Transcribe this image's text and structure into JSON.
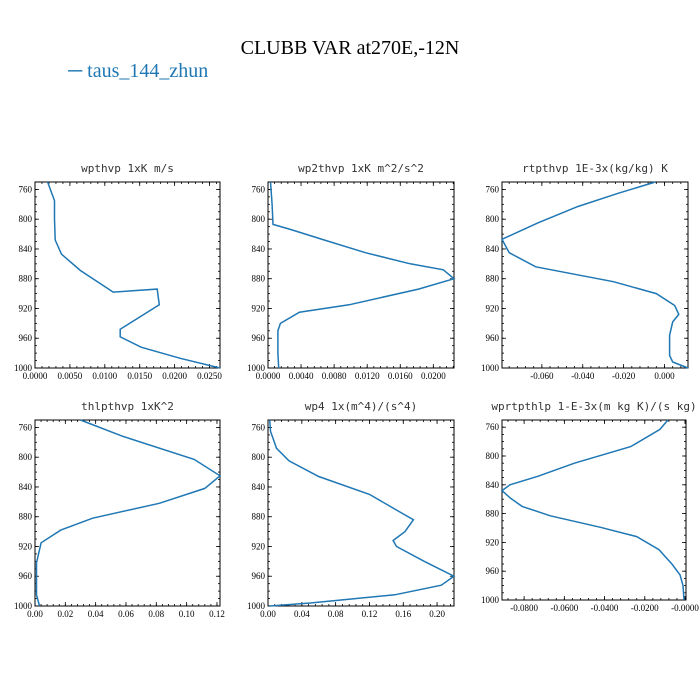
{
  "page": {
    "title": "CLUBB VAR at270E,-12N",
    "legend_label": "taus_144_zhun",
    "series_color": "#1f77b4"
  },
  "chart_data": [
    {
      "type": "line",
      "title": "wpthvp  1xK m/s",
      "xlim": [
        0,
        0.0265
      ],
      "ylim": [
        1000,
        750
      ],
      "y_reversed": true,
      "xticks": [
        0,
        0.005,
        0.01,
        0.015,
        0.02,
        0.025
      ],
      "xtick_labels": [
        "0.0000",
        "0.0050",
        "0.0100",
        "0.0150",
        "0.0200",
        "0.0250"
      ],
      "yticks": [
        760,
        800,
        840,
        880,
        920,
        960,
        1000
      ],
      "x": [
        0.0018,
        0.0028,
        0.0028,
        0.0029,
        0.0038,
        0.0065,
        0.0112,
        0.0175,
        0.0178,
        0.0122,
        0.0122,
        0.0152,
        0.0208,
        0.0265
      ],
      "y": [
        750,
        775,
        800,
        828,
        847,
        869,
        898,
        894,
        915,
        948,
        958,
        972,
        987,
        1000
      ]
    },
    {
      "type": "line",
      "title": "wp2thvp  1xK m^2/s^2",
      "xlim": [
        0,
        0.0225
      ],
      "ylim": [
        1000,
        750
      ],
      "y_reversed": true,
      "xticks": [
        0,
        0.004,
        0.008,
        0.012,
        0.016,
        0.02
      ],
      "xtick_labels": [
        "0.0000",
        "0.0040",
        "0.0080",
        "0.0120",
        "0.0160",
        "0.0200"
      ],
      "yticks": [
        760,
        800,
        840,
        880,
        920,
        960,
        1000
      ],
      "x": [
        0.0003,
        0.0005,
        0.0006,
        0.0028,
        0.0068,
        0.0118,
        0.0172,
        0.0212,
        0.0225,
        0.0182,
        0.0098,
        0.0038,
        0.0015,
        0.0012,
        0.0012,
        0.0013
      ],
      "y": [
        750,
        780,
        807,
        814,
        828,
        845,
        860,
        868,
        880,
        894,
        915,
        925,
        940,
        950,
        980,
        1000
      ]
    },
    {
      "type": "line",
      "title": "rtpthvp  1E-3x(kg/kg) K",
      "xlim": [
        -0.0795,
        0.0115
      ],
      "ylim": [
        1000,
        750
      ],
      "y_reversed": true,
      "xticks": [
        -0.06,
        -0.04,
        -0.02,
        0
      ],
      "xtick_labels": [
        "-0.060",
        "-0.040",
        "-0.020",
        "0.000"
      ],
      "yticks": [
        760,
        800,
        840,
        880,
        920,
        960,
        1000
      ],
      "x": [
        -0.0045,
        -0.0225,
        -0.0425,
        -0.062,
        -0.0795,
        -0.076,
        -0.063,
        -0.025,
        -0.004,
        0.005,
        0.007,
        0.004,
        0.0025,
        0.0025,
        0.004,
        0.0115
      ],
      "y": [
        750,
        765,
        783,
        805,
        827,
        845,
        864,
        884,
        900,
        916,
        928,
        938,
        956,
        983,
        992,
        1000
      ]
    },
    {
      "type": "line",
      "title": "thlpthvp  1xK^2",
      "xlim": [
        0,
        0.122
      ],
      "ylim": [
        1000,
        750
      ],
      "y_reversed": true,
      "xticks": [
        0,
        0.02,
        0.04,
        0.06,
        0.08,
        0.1,
        0.12
      ],
      "xtick_labels": [
        "0.00",
        "0.02",
        "0.04",
        "0.06",
        "0.08",
        "0.10",
        "0.12"
      ],
      "yticks": [
        760,
        800,
        840,
        880,
        920,
        960,
        1000
      ],
      "x": [
        0.03,
        0.058,
        0.105,
        0.122,
        0.112,
        0.082,
        0.038,
        0.017,
        0.004,
        0.001,
        0.001,
        0.003
      ],
      "y": [
        750,
        772,
        803,
        825,
        842,
        862,
        882,
        898,
        915,
        942,
        985,
        1000
      ]
    },
    {
      "type": "line",
      "title": "wp4  1x(m^4)/(s^4)",
      "xlim": [
        0,
        0.22
      ],
      "ylim": [
        1000,
        750
      ],
      "y_reversed": true,
      "xticks": [
        0,
        0.04,
        0.08,
        0.12,
        0.16,
        0.2
      ],
      "xtick_labels": [
        "0.00",
        "0.04",
        "0.08",
        "0.12",
        "0.16",
        "0.20"
      ],
      "yticks": [
        760,
        800,
        840,
        880,
        920,
        960,
        1000
      ],
      "x": [
        0.002,
        0.003,
        0.01,
        0.025,
        0.06,
        0.12,
        0.155,
        0.172,
        0.162,
        0.148,
        0.152,
        0.185,
        0.22,
        0.205,
        0.15,
        0.05,
        0.002
      ],
      "y": [
        750,
        765,
        788,
        805,
        826,
        850,
        873,
        884,
        900,
        912,
        920,
        940,
        960,
        972,
        985,
        996,
        1000
      ]
    },
    {
      "type": "line",
      "title": "wprtpthlp  1-E-3x(m kg K)/(s kg)",
      "xlim": [
        -0.091,
        0.0005
      ],
      "ylim": [
        1000,
        750
      ],
      "y_reversed": true,
      "xticks": [
        -0.08,
        -0.06,
        -0.04,
        -0.02,
        0
      ],
      "xtick_labels": [
        "-0.0800",
        "-0.0600",
        "-0.0400",
        "-0.0200",
        "-0.0000"
      ],
      "yticks": [
        760,
        800,
        840,
        880,
        920,
        960,
        1000
      ],
      "x": [
        -0.0085,
        -0.0125,
        -0.027,
        -0.055,
        -0.073,
        -0.087,
        -0.091,
        -0.087,
        -0.081,
        -0.067,
        -0.042,
        -0.024,
        -0.013,
        -0.0065,
        -0.0025,
        -0.001,
        -0.0005
      ],
      "y": [
        750,
        763,
        787,
        810,
        828,
        840,
        848,
        858,
        870,
        883,
        899,
        912,
        930,
        950,
        965,
        980,
        1000
      ]
    }
  ]
}
